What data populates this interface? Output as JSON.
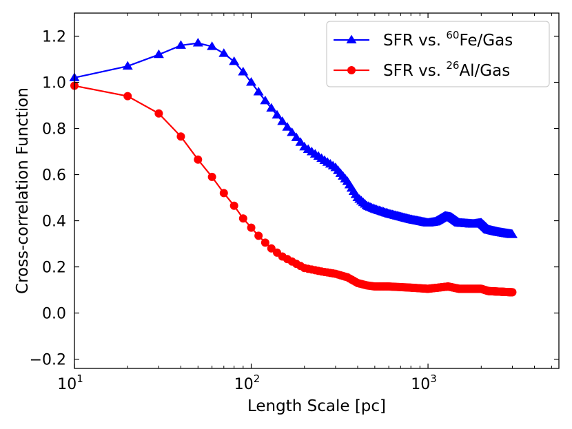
{
  "chart_data": {
    "type": "line",
    "x_scale": "log",
    "xlabel": "Length Scale [pc]",
    "ylabel": "Cross-correlation Function",
    "xlim": [
      10,
      5500
    ],
    "ylim": [
      -0.24,
      1.3
    ],
    "x_ticks": [
      {
        "value": 10,
        "base": "10",
        "exp": "1"
      },
      {
        "value": 100,
        "base": "10",
        "exp": "2"
      },
      {
        "value": 1000,
        "base": "10",
        "exp": "3"
      }
    ],
    "y_ticks": [
      {
        "value": -0.2,
        "label": "−0.2"
      },
      {
        "value": 0.0,
        "label": "0.0"
      },
      {
        "value": 0.2,
        "label": "0.2"
      },
      {
        "value": 0.4,
        "label": "0.4"
      },
      {
        "value": 0.6,
        "label": "0.6"
      },
      {
        "value": 0.8,
        "label": "0.8"
      },
      {
        "value": 1.0,
        "label": "1.0"
      },
      {
        "value": 1.2,
        "label": "1.2"
      }
    ],
    "legend": {
      "position": "top-right",
      "entries": [
        {
          "prefix": "SFR vs. ",
          "sup": "60",
          "suffix": "Fe/Gas"
        },
        {
          "prefix": "SFR vs. ",
          "sup": "26",
          "suffix": "Al/Gas"
        }
      ]
    },
    "series": [
      {
        "name": "SFR vs. 60Fe/Gas",
        "color": "#0000ff",
        "marker": "triangle",
        "knots": [
          [
            10,
            1.02
          ],
          [
            20,
            1.07
          ],
          [
            30,
            1.12
          ],
          [
            40,
            1.16
          ],
          [
            50,
            1.17
          ],
          [
            60,
            1.155
          ],
          [
            70,
            1.125
          ],
          [
            80,
            1.09
          ],
          [
            90,
            1.045
          ],
          [
            100,
            1.0
          ],
          [
            120,
            0.92
          ],
          [
            150,
            0.83
          ],
          [
            200,
            0.72
          ],
          [
            250,
            0.67
          ],
          [
            300,
            0.63
          ],
          [
            350,
            0.57
          ],
          [
            400,
            0.5
          ],
          [
            450,
            0.465
          ],
          [
            500,
            0.45
          ],
          [
            600,
            0.43
          ],
          [
            800,
            0.405
          ],
          [
            1000,
            0.39
          ],
          [
            1100,
            0.395
          ],
          [
            1250,
            0.42
          ],
          [
            1350,
            0.415
          ],
          [
            1500,
            0.39
          ],
          [
            1800,
            0.385
          ],
          [
            2000,
            0.39
          ],
          [
            2200,
            0.36
          ],
          [
            2500,
            0.35
          ],
          [
            3000,
            0.34
          ]
        ]
      },
      {
        "name": "SFR vs. 26Al/Gas",
        "color": "#ff0000",
        "marker": "circle",
        "knots": [
          [
            10,
            0.985
          ],
          [
            20,
            0.94
          ],
          [
            30,
            0.865
          ],
          [
            40,
            0.765
          ],
          [
            50,
            0.665
          ],
          [
            60,
            0.59
          ],
          [
            70,
            0.52
          ],
          [
            80,
            0.465
          ],
          [
            90,
            0.41
          ],
          [
            100,
            0.37
          ],
          [
            110,
            0.335
          ],
          [
            120,
            0.305
          ],
          [
            130,
            0.28
          ],
          [
            150,
            0.245
          ],
          [
            200,
            0.195
          ],
          [
            250,
            0.18
          ],
          [
            300,
            0.17
          ],
          [
            350,
            0.155
          ],
          [
            400,
            0.13
          ],
          [
            450,
            0.12
          ],
          [
            500,
            0.115
          ],
          [
            600,
            0.115
          ],
          [
            800,
            0.11
          ],
          [
            1000,
            0.105
          ],
          [
            1300,
            0.115
          ],
          [
            1500,
            0.105
          ],
          [
            2000,
            0.105
          ],
          [
            2200,
            0.095
          ],
          [
            3000,
            0.09
          ]
        ]
      }
    ]
  }
}
